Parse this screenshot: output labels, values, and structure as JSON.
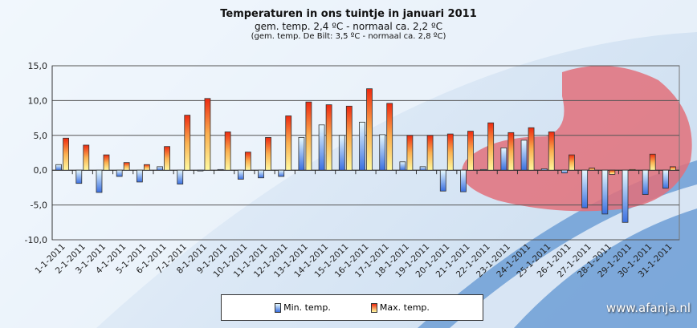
{
  "chart_data": {
    "type": "bar",
    "title": "Temperaturen  in ons tuintje in januari 2011",
    "subtitle": "gem.  temp.  2,4 ºC  - normaal  ca. 2,2  ºC",
    "subtitle2": "(gem. temp. De Bilt:  3,5 ºC - normaal ca. 2,8 ºC)",
    "ylim": [
      -10,
      15
    ],
    "yticks": [
      "15,0",
      "10,0",
      "5,0",
      "0,0",
      "-5,0",
      "-10,0"
    ],
    "ytick_values": [
      15,
      10,
      5,
      0,
      -5,
      -10
    ],
    "grid": true,
    "legend_position": "bottom",
    "categories": [
      "1-1-2011",
      "2-1-2011",
      "3-1-2011",
      "4-1-2011",
      "5-1-2011",
      "6-1-2011",
      "7-1-2011",
      "8-1-2011",
      "9-1-2011",
      "10-1-2011",
      "11-1-2011",
      "12-1-2011",
      "13-1-2011",
      "14-1-2011",
      "15-1-2011",
      "16-1-2011",
      "17-1-2011",
      "18-1-2011",
      "19-1-2011",
      "20-1-2011",
      "21-1-2011",
      "22-1-2011",
      "23-1-2011",
      "24-1-2011",
      "25-1-2011",
      "26-1-2011",
      "27-1-2011",
      "28-1-2011",
      "29-1-2011",
      "30-1-2011",
      "31-1-2011"
    ],
    "series": [
      {
        "name": "Min. temp.",
        "color": "#3a6fe0",
        "values": [
          0.8,
          -1.9,
          -3.2,
          -0.9,
          -1.7,
          0.5,
          -2.0,
          0.0,
          0.1,
          -1.3,
          -1.1,
          -0.9,
          4.7,
          6.5,
          5.0,
          6.9,
          5.1,
          1.2,
          0.5,
          -3.0,
          -3.1,
          0.1,
          3.2,
          4.3,
          0.2,
          -0.4,
          -5.4,
          -6.3,
          -7.5,
          -3.5,
          -2.6
        ]
      },
      {
        "name": "Max. temp.",
        "color": "#ee2a10",
        "values": [
          4.6,
          3.6,
          2.2,
          1.1,
          0.8,
          3.4,
          7.9,
          10.3,
          5.5,
          2.6,
          4.7,
          7.8,
          9.8,
          9.4,
          9.2,
          11.7,
          9.6,
          5.0,
          5.0,
          5.2,
          5.6,
          6.8,
          5.4,
          6.1,
          5.5,
          2.2,
          0.3,
          -0.6,
          0.1,
          2.3,
          0.5
        ]
      }
    ]
  },
  "watermark": "www.afanja.nl"
}
